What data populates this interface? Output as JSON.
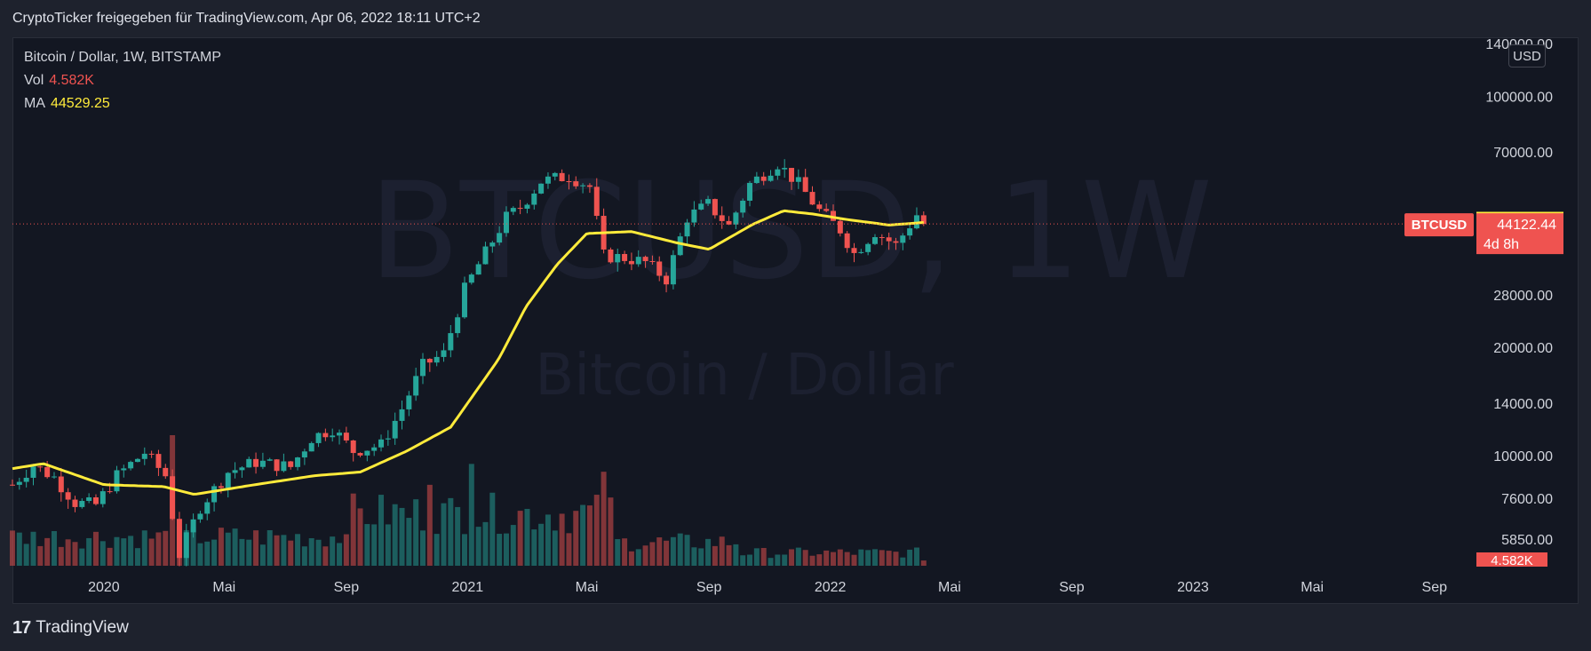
{
  "header": {
    "title": "CryptoTicker freigegeben für TradingView.com, Apr 06, 2022 18:11 UTC+2"
  },
  "legend": {
    "symbol": "Bitcoin / Dollar, 1W, BITSTAMP",
    "vol_label": "Vol",
    "vol_value": "4.582K",
    "ma_label": "MA",
    "ma_value": "44529.25"
  },
  "watermark": {
    "ticker": "BTCUSD, 1W",
    "name": "Bitcoin / Dollar"
  },
  "currency_button": "USD",
  "price_tags": {
    "ma": "44529.25",
    "last_symbol": "BTCUSD",
    "last_price": "44122.44",
    "countdown": "4d 8h",
    "volume": "4.582K"
  },
  "footer": {
    "logo_glyph": "17",
    "brand": "TradingView"
  },
  "colors": {
    "up": "#26a69a",
    "down": "#ef5350",
    "ma": "#ffeb3b",
    "background": "#131722",
    "frame": "#1e222d"
  },
  "chart_data": {
    "type": "candlestick",
    "y_scale": "log",
    "y_ticks": [
      140000,
      100000,
      70000,
      28000,
      20000,
      14000,
      10000,
      7600,
      5850
    ],
    "y_tick_labels": [
      "140000.00",
      "100000.00",
      "70000.00",
      "28000.00",
      "20000.00",
      "14000.00",
      "10000.00",
      "7600.00",
      "5850.00"
    ],
    "x_tick_labels": [
      "2020",
      "Mai",
      "Sep",
      "2021",
      "Mai",
      "Sep",
      "2022",
      "Mai",
      "Sep",
      "2023",
      "Mai",
      "Sep"
    ],
    "x_tick_dates": [
      "2020-01-01",
      "2020-05-01",
      "2020-09-01",
      "2021-01-01",
      "2021-05-01",
      "2021-09-01",
      "2022-01-01",
      "2022-05-01",
      "2022-09-01",
      "2023-01-01",
      "2023-05-01",
      "2023-09-01"
    ],
    "x_range": [
      "2019-10-01",
      "2023-10-15"
    ],
    "close_anchors": [
      [
        "2019-10-01",
        8300
      ],
      [
        "2019-10-22",
        9400
      ],
      [
        "2019-11-12",
        8700
      ],
      [
        "2019-12-03",
        7400
      ],
      [
        "2019-12-24",
        7300
      ],
      [
        "2020-01-14",
        8800
      ],
      [
        "2020-02-11",
        10200
      ],
      [
        "2020-03-03",
        8800
      ],
      [
        "2020-03-17",
        5300
      ],
      [
        "2020-04-07",
        7200
      ],
      [
        "2020-05-05",
        9000
      ],
      [
        "2020-06-02",
        9600
      ],
      [
        "2020-07-07",
        9300
      ],
      [
        "2020-07-28",
        11200
      ],
      [
        "2020-08-18",
        11900
      ],
      [
        "2020-09-08",
        10300
      ],
      [
        "2020-10-06",
        10700
      ],
      [
        "2020-10-27",
        13500
      ],
      [
        "2020-11-17",
        17800
      ],
      [
        "2020-12-08",
        19200
      ],
      [
        "2020-12-29",
        29000
      ],
      [
        "2021-01-12",
        34000
      ],
      [
        "2021-02-09",
        46000
      ],
      [
        "2021-02-23",
        49000
      ],
      [
        "2021-03-16",
        58000
      ],
      [
        "2021-04-13",
        60000
      ],
      [
        "2021-05-04",
        56000
      ],
      [
        "2021-05-18",
        36000
      ],
      [
        "2021-06-08",
        35500
      ],
      [
        "2021-06-29",
        34500
      ],
      [
        "2021-07-20",
        31000
      ],
      [
        "2021-08-10",
        46000
      ],
      [
        "2021-08-31",
        50000
      ],
      [
        "2021-09-21",
        43500
      ],
      [
        "2021-10-12",
        57000
      ],
      [
        "2021-11-09",
        65000
      ],
      [
        "2021-11-30",
        57000
      ],
      [
        "2021-12-21",
        48000
      ],
      [
        "2022-01-11",
        42500
      ],
      [
        "2022-01-25",
        36500
      ],
      [
        "2022-02-15",
        42000
      ],
      [
        "2022-03-08",
        38500
      ],
      [
        "2022-03-29",
        46800
      ],
      [
        "2022-04-05",
        44122
      ]
    ],
    "ma_anchors": [
      [
        "2019-10-01",
        9200
      ],
      [
        "2019-11-01",
        9500
      ],
      [
        "2020-01-01",
        8300
      ],
      [
        "2020-03-01",
        8200
      ],
      [
        "2020-04-01",
        7800
      ],
      [
        "2020-06-01",
        8300
      ],
      [
        "2020-08-01",
        8800
      ],
      [
        "2020-09-15",
        9000
      ],
      [
        "2020-11-01",
        10300
      ],
      [
        "2020-12-15",
        12000
      ],
      [
        "2021-02-01",
        18500
      ],
      [
        "2021-03-01",
        26000
      ],
      [
        "2021-04-01",
        34000
      ],
      [
        "2021-05-01",
        41500
      ],
      [
        "2021-06-15",
        42000
      ],
      [
        "2021-08-01",
        39000
      ],
      [
        "2021-09-01",
        37500
      ],
      [
        "2021-10-15",
        44000
      ],
      [
        "2021-11-15",
        48000
      ],
      [
        "2021-12-15",
        47000
      ],
      [
        "2022-01-15",
        45500
      ],
      [
        "2022-03-01",
        43800
      ],
      [
        "2022-04-05",
        44529
      ]
    ],
    "last_price": 44122.44,
    "ma_last": 44529.25,
    "last_volume": 4582,
    "volume_spikes": [
      [
        "2020-03-10",
        1.0
      ],
      [
        "2021-01-05",
        0.78
      ],
      [
        "2021-05-18",
        0.72
      ],
      [
        "2020-11-24",
        0.62
      ]
    ]
  }
}
